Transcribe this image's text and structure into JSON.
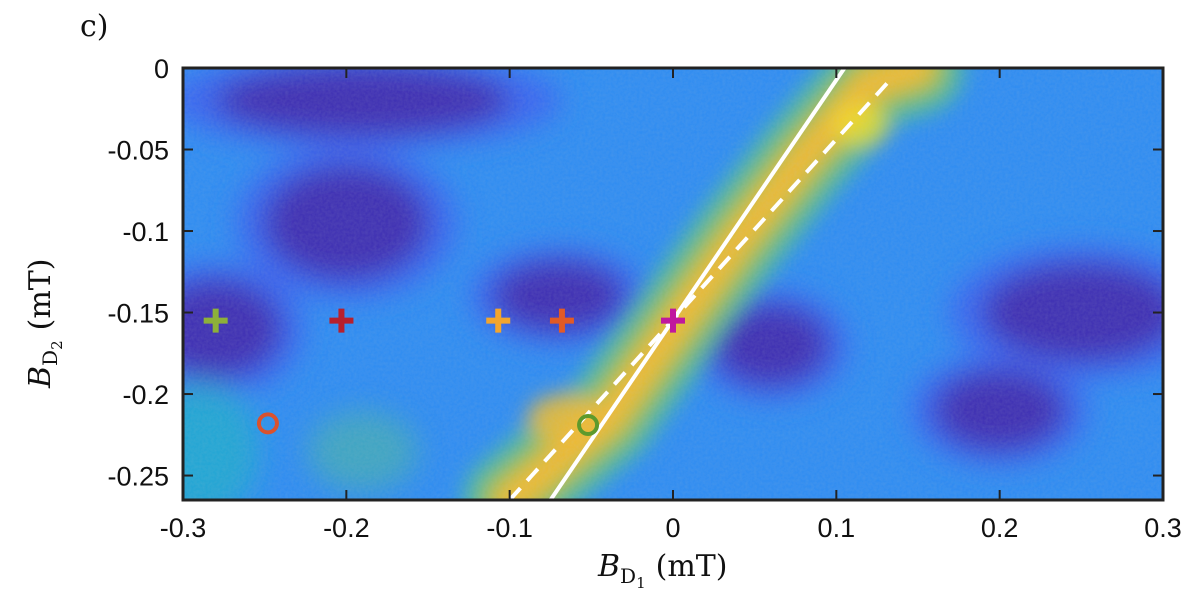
{
  "panel_label": "c)",
  "chart_data": {
    "type": "heatmap",
    "xlabel": "B_{D_1} (mT)",
    "xlabel_main": "B",
    "xlabel_sub": "D",
    "xlabel_subsub": "1",
    "xlabel_unit": "(mT)",
    "ylabel_main": "B",
    "ylabel_sub": "D",
    "ylabel_subsub": "2",
    "ylabel_unit": "(mT)",
    "xlim": [
      -0.3,
      0.3
    ],
    "ylim": [
      -0.265,
      0.0
    ],
    "x_ticks": [
      -0.3,
      -0.2,
      -0.1,
      0,
      0.1,
      0.2,
      0.3
    ],
    "x_tick_labels": [
      "-0.3",
      "-0.2",
      "-0.1",
      "0",
      "0.1",
      "0.2",
      "0.3"
    ],
    "y_ticks": [
      0,
      -0.05,
      -0.1,
      -0.15,
      -0.2,
      -0.25
    ],
    "y_tick_labels": [
      "0",
      "-0.05",
      "-0.1",
      "-0.15",
      "-0.2",
      "-0.25"
    ],
    "colormap": [
      "#3e26a8",
      "#3c5df0",
      "#2d8cf3",
      "#1fb0c7",
      "#52c48a",
      "#a6c13e",
      "#f2b933",
      "#f9e222"
    ],
    "dark_regions": [
      {
        "x": -0.19,
        "y": -0.02,
        "rx": 0.09,
        "ry": 0.022
      },
      {
        "x": -0.2,
        "y": -0.095,
        "rx": 0.05,
        "ry": 0.035
      },
      {
        "x": -0.07,
        "y": -0.14,
        "rx": 0.04,
        "ry": 0.022
      },
      {
        "x": 0.06,
        "y": -0.17,
        "rx": 0.035,
        "ry": 0.025
      },
      {
        "x": 0.2,
        "y": -0.21,
        "rx": 0.04,
        "ry": 0.025
      },
      {
        "x": 0.25,
        "y": -0.15,
        "rx": 0.06,
        "ry": 0.03
      },
      {
        "x": -0.28,
        "y": -0.16,
        "rx": 0.04,
        "ry": 0.03
      }
    ],
    "lines": [
      {
        "name": "solid",
        "style": "solid",
        "color": "#ffffff",
        "x": [
          -0.075,
          0.105
        ],
        "y": [
          -0.265,
          0.0
        ]
      },
      {
        "name": "dashed",
        "style": "dashed",
        "color": "#ffffff",
        "x": [
          -0.1,
          0.135
        ],
        "y": [
          -0.265,
          -0.005
        ]
      }
    ],
    "markers": [
      {
        "shape": "plus",
        "color": "#8db03a",
        "x": -0.28,
        "y": -0.155
      },
      {
        "shape": "plus",
        "color": "#b7202e",
        "x": -0.203,
        "y": -0.155
      },
      {
        "shape": "plus",
        "color": "#f2a52e",
        "x": -0.107,
        "y": -0.155
      },
      {
        "shape": "plus",
        "color": "#e25a26",
        "x": -0.068,
        "y": -0.155
      },
      {
        "shape": "plus",
        "color": "#c0189e",
        "x": 0.0,
        "y": -0.155
      },
      {
        "shape": "circle",
        "color": "#d9522e",
        "x": -0.248,
        "y": -0.218
      },
      {
        "shape": "circle",
        "color": "#5e9a2c",
        "x": -0.052,
        "y": -0.219
      }
    ]
  }
}
